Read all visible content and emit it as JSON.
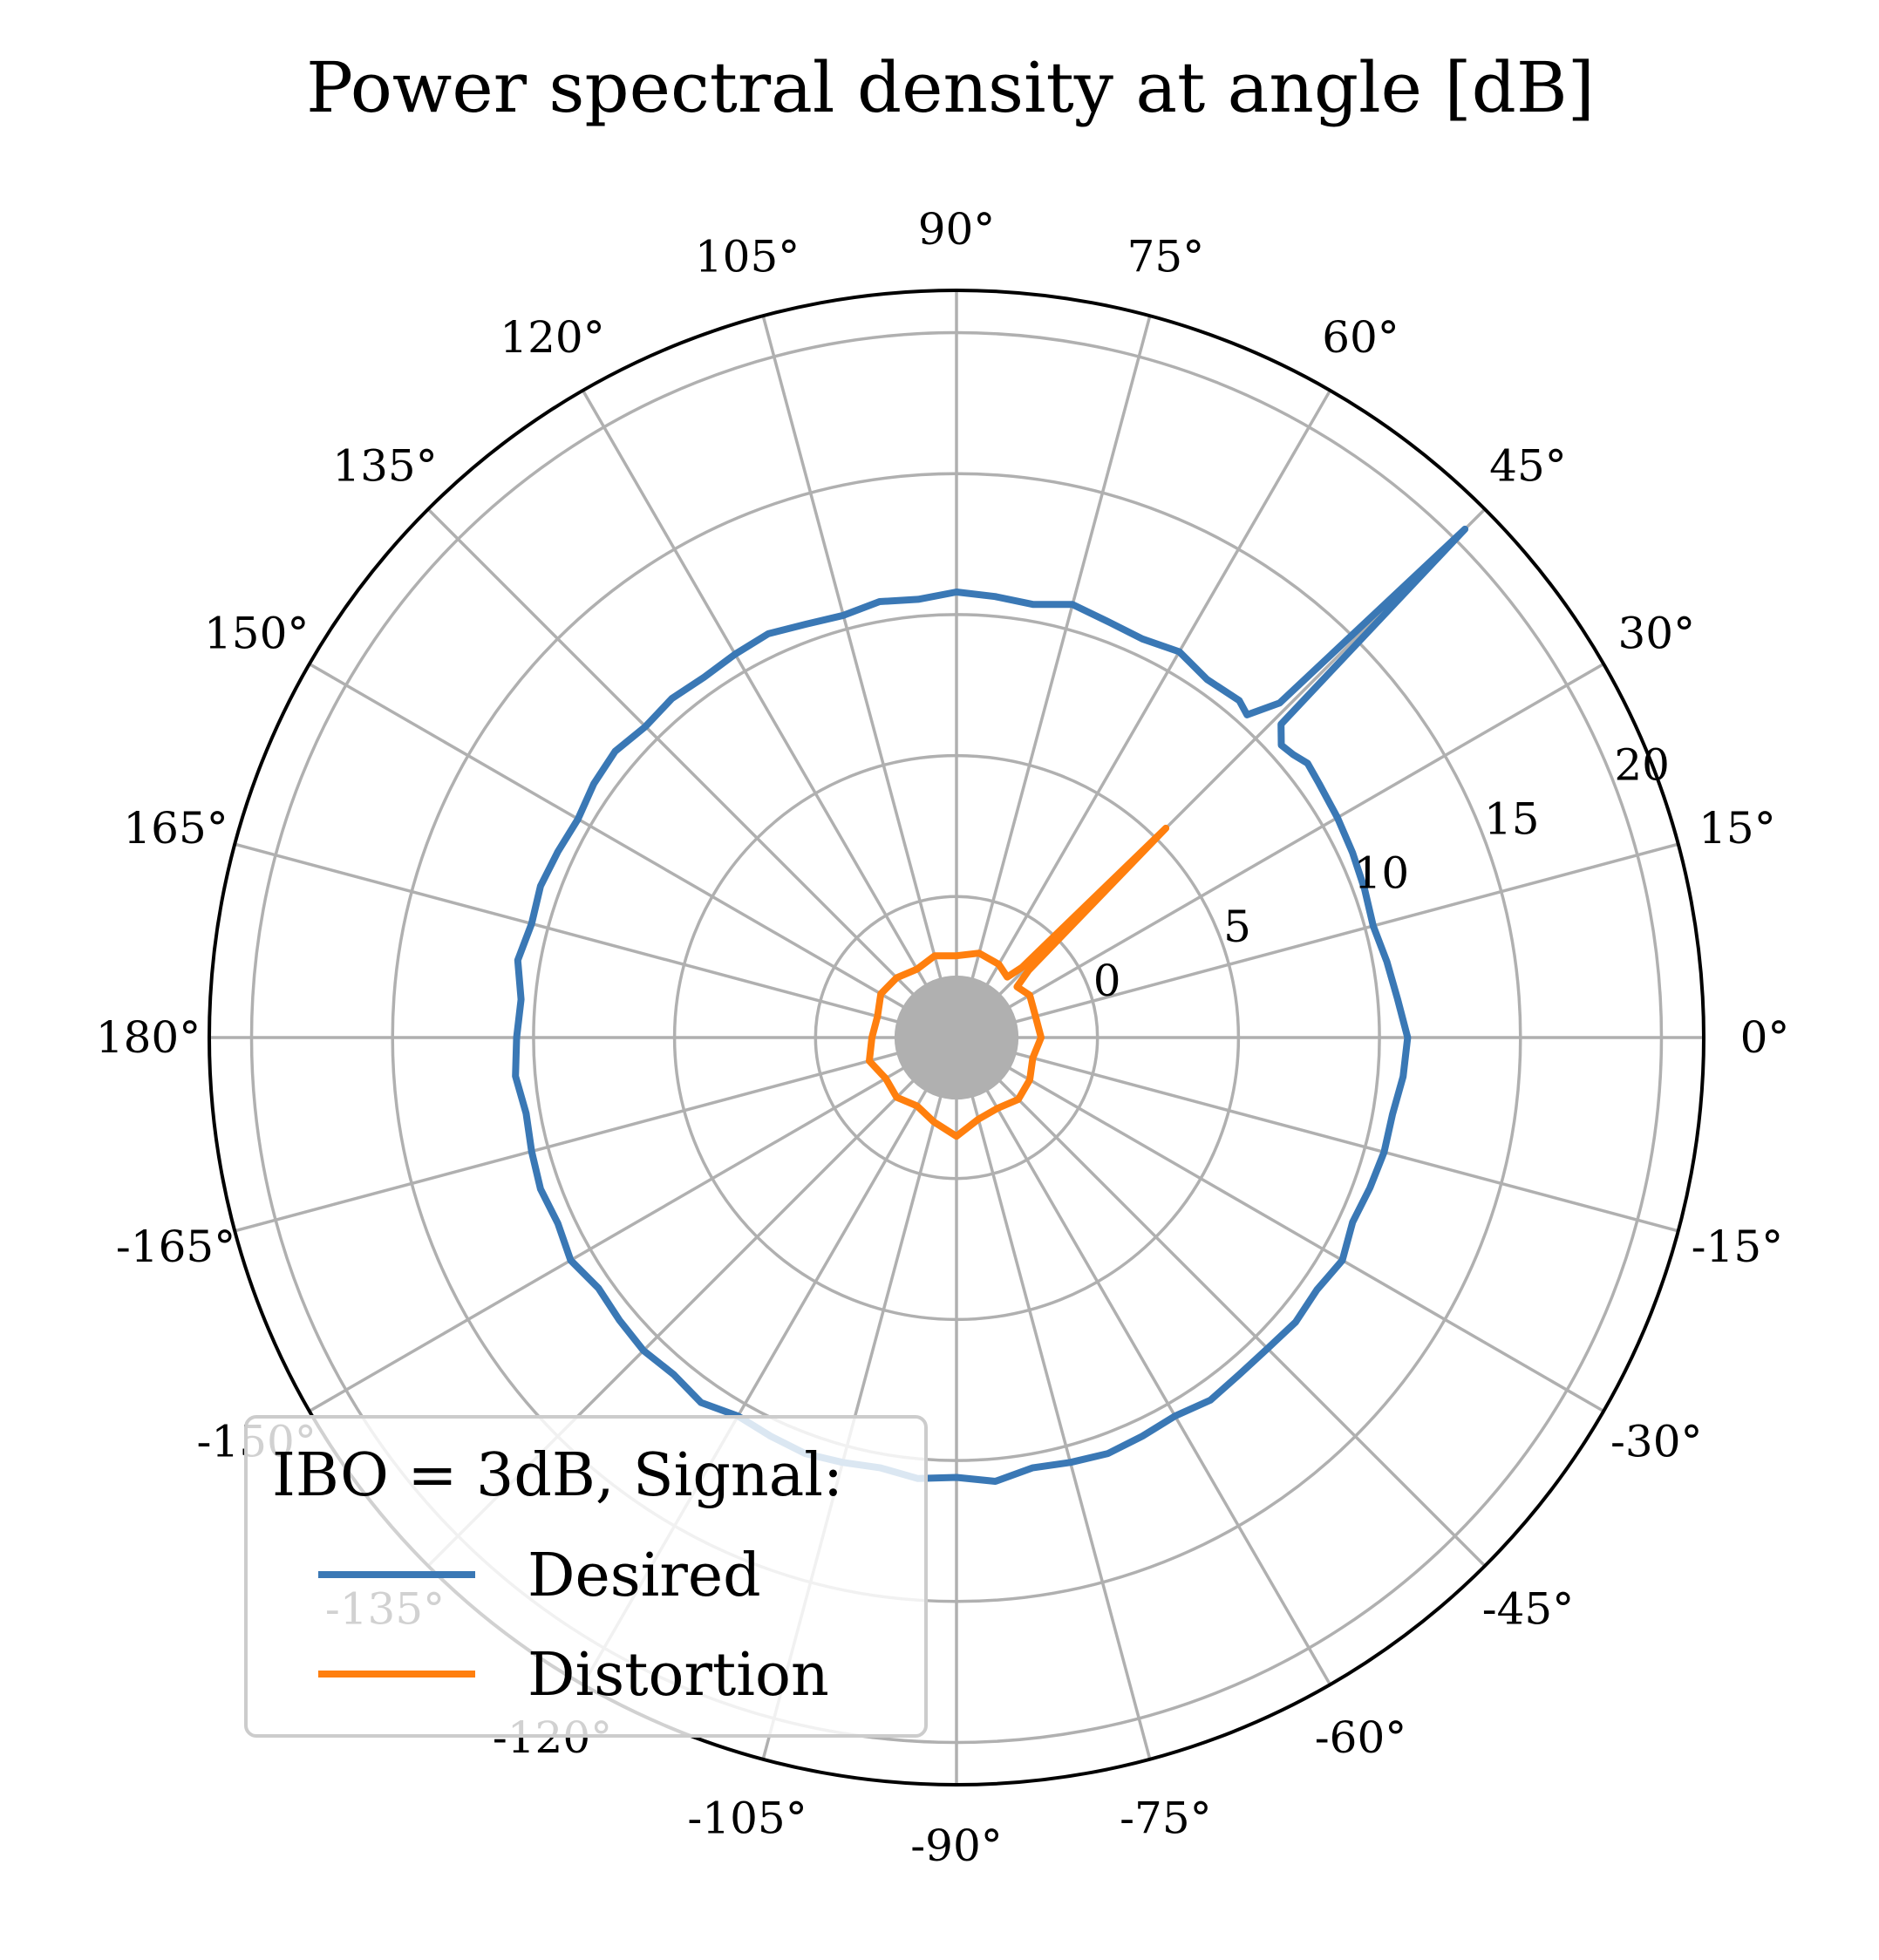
{
  "chart_data": {
    "type": "polar-line",
    "title": "Power spectral density at angle [dB]",
    "theta_unit": "degrees",
    "theta_ticks": [
      0,
      15,
      30,
      45,
      60,
      75,
      90,
      105,
      120,
      135,
      150,
      165,
      180,
      -165,
      -150,
      -135,
      -120,
      -105,
      -90,
      -75,
      -60,
      -45,
      -30,
      -15
    ],
    "theta_tick_labels": [
      "0°",
      "15°",
      "30°",
      "45°",
      "60°",
      "75°",
      "90°",
      "105°",
      "120°",
      "135°",
      "150°",
      "165°",
      "180°",
      "-165°",
      "-150°",
      "-135°",
      "-120°",
      "-105°",
      "-90°",
      "-75°",
      "-60°",
      "-45°",
      "-30°",
      "-15°"
    ],
    "r_ticks": [
      0,
      5,
      10,
      15,
      20
    ],
    "r_tick_labels": [
      "0",
      "5",
      "10",
      "15",
      "20"
    ],
    "rlim": [
      -5,
      21.5
    ],
    "r_label_angle_deg": 22.5,
    "grid": true,
    "legend": {
      "title": "IBO = 3dB, Signal:",
      "placement": "lower-left",
      "entries": [
        "Desired",
        "Distortion"
      ]
    },
    "series": [
      {
        "name": "Desired",
        "color": "#3a78b5",
        "theta": [
          0,
          5,
          10,
          15,
          20,
          25,
          30,
          35,
          38,
          40,
          42,
          44,
          45,
          46,
          48,
          50,
          55,
          60,
          65,
          70,
          75,
          80,
          85,
          90,
          95,
          100,
          105,
          110,
          115,
          120,
          125,
          130,
          135,
          140,
          145,
          150,
          155,
          160,
          165,
          170,
          175,
          180,
          -175,
          -170,
          -165,
          -160,
          -155,
          -150,
          -145,
          -140,
          -135,
          -130,
          -125,
          -120,
          -115,
          -110,
          -105,
          -100,
          -95,
          -90,
          -85,
          -80,
          -75,
          -70,
          -65,
          -60,
          -55,
          -50,
          -45,
          -40,
          -35,
          -30,
          -25,
          -20,
          -15,
          -10,
          -5,
          0
        ],
        "r": [
          11.0,
          10.7,
          10.5,
          10.3,
          10.4,
          10.5,
          10.6,
          10.7,
          10.8,
          10.6,
          10.5,
          11.0,
          20.5,
          11.5,
          10.4,
          10.6,
          10.5,
          10.8,
          10.6,
          10.7,
          10.9,
          10.6,
          10.7,
          10.8,
          10.6,
          10.7,
          10.5,
          10.6,
          10.8,
          10.7,
          10.6,
          10.7,
          10.6,
          10.8,
          10.7,
          10.5,
          10.6,
          10.7,
          10.6,
          10.8,
          10.5,
          10.6,
          10.7,
          10.5,
          10.6,
          10.7,
          10.6,
          10.8,
          10.5,
          10.6,
          10.7,
          10.6,
          10.8,
          10.5,
          10.6,
          10.7,
          10.6,
          10.5,
          10.7,
          10.6,
          10.8,
          10.5,
          10.6,
          10.7,
          10.6,
          10.5,
          10.7,
          10.6,
          10.6,
          10.7,
          10.6,
          10.8,
          10.5,
          10.6,
          10.7,
          10.7,
          10.9,
          11.0
        ]
      },
      {
        "name": "Distortion",
        "color": "#ff7f0e",
        "theta": [
          0,
          15,
          30,
          40,
          43,
          45,
          47,
          50,
          60,
          75,
          90,
          105,
          120,
          135,
          150,
          165,
          180,
          -165,
          -150,
          -135,
          -120,
          -105,
          -90,
          -75,
          -60,
          -45,
          -30,
          -15,
          0
        ],
        "r": [
          -2.0,
          -2.1,
          -2.0,
          -2.2,
          -1.5,
          5.5,
          -1.6,
          -2.2,
          -2.0,
          -1.9,
          -2.1,
          -2.0,
          -2.2,
          -2.0,
          -1.9,
          -2.1,
          -2.0,
          -1.8,
          -2.1,
          -2.0,
          -2.2,
          -1.9,
          -1.5,
          -2.0,
          -2.1,
          -1.9,
          -2.0,
          -2.2,
          -2.0
        ]
      }
    ]
  }
}
